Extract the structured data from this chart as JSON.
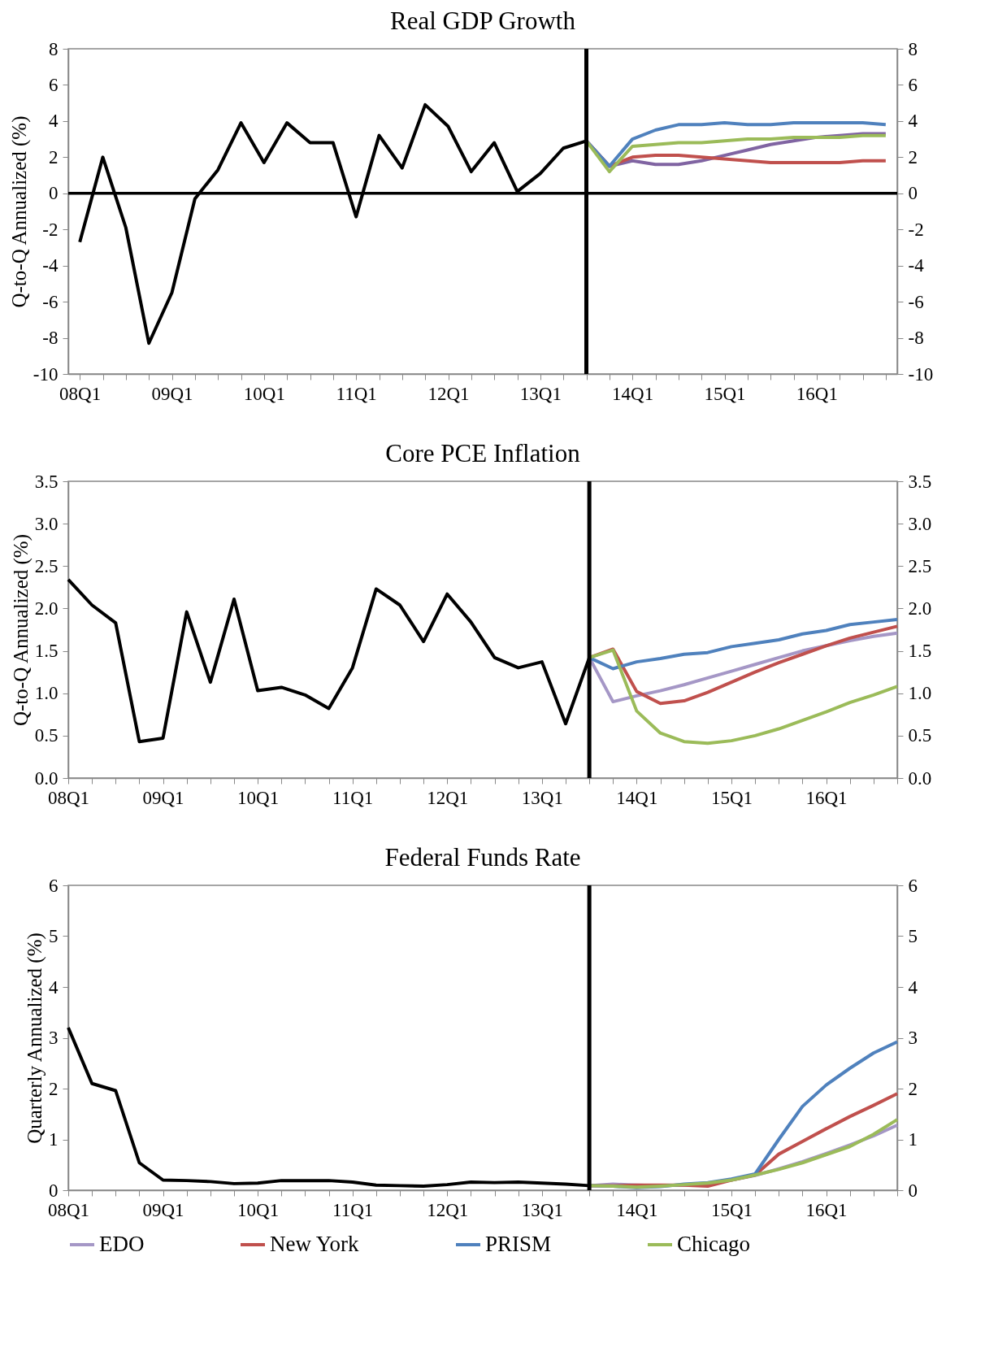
{
  "chart_data": [
    {
      "type": "line",
      "title": "Real GDP Growth",
      "ylabel": "Q-to-Q Annualized (%)",
      "categories": [
        "08Q1",
        null,
        null,
        null,
        "09Q1",
        null,
        null,
        null,
        "10Q1",
        null,
        null,
        null,
        "11Q1",
        null,
        null,
        null,
        "12Q1",
        null,
        null,
        null,
        "13Q1",
        null,
        null,
        null,
        "14Q1",
        null,
        null,
        null,
        "15Q1",
        null,
        null,
        null,
        "16Q1",
        null,
        null,
        null
      ],
      "series": [
        {
          "color": "#000000",
          "values": [
            -2.7,
            2.0,
            -1.9,
            -8.3,
            -5.5,
            -0.3,
            1.3,
            3.9,
            1.7,
            3.9,
            2.8,
            2.8,
            -1.3,
            3.2,
            1.4,
            4.9,
            3.7,
            1.2,
            2.8,
            0.1,
            1.1,
            2.5,
            2.9,
            null,
            null,
            null,
            null,
            null,
            null,
            null,
            null,
            null,
            null,
            null,
            null,
            null
          ]
        },
        {
          "color": "#8064a2",
          "values": [
            null,
            null,
            null,
            null,
            null,
            null,
            null,
            null,
            null,
            null,
            null,
            null,
            null,
            null,
            null,
            null,
            null,
            null,
            null,
            null,
            null,
            null,
            2.9,
            1.5,
            1.8,
            1.6,
            1.6,
            1.8,
            2.1,
            2.4,
            2.7,
            2.9,
            3.1,
            3.2,
            3.3,
            3.3
          ]
        },
        {
          "color": "#c0504d",
          "values": [
            null,
            null,
            null,
            null,
            null,
            null,
            null,
            null,
            null,
            null,
            null,
            null,
            null,
            null,
            null,
            null,
            null,
            null,
            null,
            null,
            null,
            null,
            2.9,
            1.5,
            2.0,
            2.1,
            2.1,
            2.0,
            1.9,
            1.8,
            1.7,
            1.7,
            1.7,
            1.7,
            1.8,
            1.8
          ]
        },
        {
          "color": "#4f81bd",
          "values": [
            null,
            null,
            null,
            null,
            null,
            null,
            null,
            null,
            null,
            null,
            null,
            null,
            null,
            null,
            null,
            null,
            null,
            null,
            null,
            null,
            null,
            null,
            2.9,
            1.5,
            3.0,
            3.5,
            3.8,
            3.8,
            3.9,
            3.8,
            3.8,
            3.9,
            3.9,
            3.9,
            3.9,
            3.8
          ]
        },
        {
          "color": "#9bbb59",
          "values": [
            null,
            null,
            null,
            null,
            null,
            null,
            null,
            null,
            null,
            null,
            null,
            null,
            null,
            null,
            null,
            null,
            null,
            null,
            null,
            null,
            null,
            null,
            2.9,
            1.2,
            2.6,
            2.7,
            2.8,
            2.8,
            2.9,
            3.0,
            3.0,
            3.1,
            3.1,
            3.1,
            3.2,
            3.2
          ]
        }
      ],
      "ylim": [
        -10,
        8
      ],
      "yticks": [
        -10,
        -8,
        -6,
        -4,
        -2,
        0,
        2,
        4,
        6,
        8
      ],
      "y2lim": [
        -10,
        8
      ],
      "y2ticks": [
        -10,
        -8,
        -6,
        -4,
        -2,
        0,
        2,
        4,
        6,
        8
      ],
      "ref_lines": [
        {
          "axis": "y",
          "value": 0,
          "color": "#000000"
        }
      ]
    },
    {
      "type": "line",
      "title": "Core PCE Inflation",
      "ylabel": "Q-to-Q Annualized (%)",
      "categories": [
        "08Q1",
        null,
        null,
        null,
        "09Q1",
        null,
        null,
        null,
        "10Q1",
        null,
        null,
        null,
        "11Q1",
        null,
        null,
        null,
        "12Q1",
        null,
        null,
        null,
        "13Q1",
        null,
        null,
        null,
        "14Q1",
        null,
        null,
        null,
        "15Q1",
        null,
        null,
        null,
        "16Q1",
        null,
        null,
        null
      ],
      "series": [
        {
          "color": "#000000",
          "values": [
            2.34,
            2.04,
            1.83,
            0.43,
            0.47,
            1.96,
            1.13,
            2.11,
            1.03,
            1.07,
            0.98,
            0.82,
            1.3,
            2.23,
            2.04,
            1.61,
            2.17,
            1.84,
            1.42,
            1.3,
            1.37,
            0.64,
            1.42,
            null,
            null,
            null,
            null,
            null,
            null,
            null,
            null,
            null,
            null,
            null,
            null,
            null
          ]
        },
        {
          "color": "#a597c6",
          "values": [
            null,
            null,
            null,
            null,
            null,
            null,
            null,
            null,
            null,
            null,
            null,
            null,
            null,
            null,
            null,
            null,
            null,
            null,
            null,
            null,
            null,
            null,
            1.42,
            0.9,
            0.97,
            1.03,
            1.1,
            1.18,
            1.26,
            1.34,
            1.42,
            1.5,
            1.56,
            1.62,
            1.67,
            1.71
          ]
        },
        {
          "color": "#c0504d",
          "values": [
            null,
            null,
            null,
            null,
            null,
            null,
            null,
            null,
            null,
            null,
            null,
            null,
            null,
            null,
            null,
            null,
            null,
            null,
            null,
            null,
            null,
            null,
            1.42,
            1.52,
            1.02,
            0.88,
            0.91,
            1.01,
            1.13,
            1.25,
            1.36,
            1.46,
            1.56,
            1.65,
            1.72,
            1.79
          ]
        },
        {
          "color": "#4f81bd",
          "values": [
            null,
            null,
            null,
            null,
            null,
            null,
            null,
            null,
            null,
            null,
            null,
            null,
            null,
            null,
            null,
            null,
            null,
            null,
            null,
            null,
            null,
            null,
            1.42,
            1.29,
            1.37,
            1.41,
            1.46,
            1.48,
            1.55,
            1.59,
            1.63,
            1.7,
            1.74,
            1.81,
            1.84,
            1.87
          ]
        },
        {
          "color": "#9bbb59",
          "values": [
            null,
            null,
            null,
            null,
            null,
            null,
            null,
            null,
            null,
            null,
            null,
            null,
            null,
            null,
            null,
            null,
            null,
            null,
            null,
            null,
            null,
            null,
            1.42,
            1.51,
            0.79,
            0.53,
            0.43,
            0.41,
            0.44,
            0.5,
            0.58,
            0.68,
            0.78,
            0.89,
            0.98,
            1.08
          ]
        }
      ],
      "ylim": [
        0,
        3.5
      ],
      "yticks": [
        {
          "value": 0,
          "label": "0.0"
        },
        0.5,
        {
          "value": 1,
          "label": "1.0"
        },
        1.5,
        {
          "value": 2,
          "label": "2.0"
        },
        2.5,
        {
          "value": 3,
          "label": "3.0"
        },
        3.5
      ],
      "y2lim": [
        0,
        3.5
      ],
      "y2ticks": [
        {
          "value": 0,
          "label": "0.0"
        },
        0.5,
        {
          "value": 1,
          "label": "1.0"
        },
        1.5,
        {
          "value": 2,
          "label": "2.0"
        },
        2.5,
        {
          "value": 3,
          "label": "3.0"
        },
        3.5
      ]
    },
    {
      "type": "line",
      "title": "Federal Funds Rate",
      "ylabel": "Quarterly Annualized (%)",
      "legend": "bottom",
      "categories": [
        "08Q1",
        null,
        null,
        null,
        "09Q1",
        null,
        null,
        null,
        "10Q1",
        null,
        null,
        null,
        "11Q1",
        null,
        null,
        null,
        "12Q1",
        null,
        null,
        null,
        "13Q1",
        null,
        null,
        null,
        "14Q1",
        null,
        null,
        null,
        "15Q1",
        null,
        null,
        null,
        "16Q1",
        null,
        null,
        null
      ],
      "series": [
        {
          "color": "#000000",
          "values": [
            3.2,
            2.1,
            1.96,
            0.54,
            0.2,
            0.19,
            0.17,
            0.13,
            0.14,
            0.19,
            0.19,
            0.19,
            0.16,
            0.1,
            0.09,
            0.08,
            0.11,
            0.16,
            0.15,
            0.16,
            0.14,
            0.12,
            0.09,
            null,
            null,
            null,
            null,
            null,
            null,
            null,
            null,
            null,
            null,
            null,
            null,
            null
          ]
        },
        {
          "name": "EDO",
          "color": "#a597c6",
          "values": [
            null,
            null,
            null,
            null,
            null,
            null,
            null,
            null,
            null,
            null,
            null,
            null,
            null,
            null,
            null,
            null,
            null,
            null,
            null,
            null,
            null,
            null,
            0.09,
            0.12,
            0.1,
            0.09,
            0.1,
            0.13,
            0.2,
            0.29,
            0.42,
            0.56,
            0.72,
            0.89,
            1.07,
            1.28
          ]
        },
        {
          "name": "New York",
          "color": "#c0504d",
          "values": [
            null,
            null,
            null,
            null,
            null,
            null,
            null,
            null,
            null,
            null,
            null,
            null,
            null,
            null,
            null,
            null,
            null,
            null,
            null,
            null,
            null,
            null,
            0.09,
            0.09,
            0.1,
            0.1,
            0.1,
            0.08,
            0.2,
            0.3,
            0.71,
            0.96,
            1.21,
            1.45,
            1.67,
            1.9
          ]
        },
        {
          "name": "PRISM",
          "color": "#4f81bd",
          "values": [
            null,
            null,
            null,
            null,
            null,
            null,
            null,
            null,
            null,
            null,
            null,
            null,
            null,
            null,
            null,
            null,
            null,
            null,
            null,
            null,
            null,
            null,
            0.09,
            0.08,
            0.05,
            0.07,
            0.12,
            0.15,
            0.22,
            0.32,
            1.0,
            1.65,
            2.07,
            2.4,
            2.7,
            2.92
          ]
        },
        {
          "name": "Chicago",
          "color": "#9bbb59",
          "values": [
            null,
            null,
            null,
            null,
            null,
            null,
            null,
            null,
            null,
            null,
            null,
            null,
            null,
            null,
            null,
            null,
            null,
            null,
            null,
            null,
            null,
            null,
            0.09,
            0.08,
            0.06,
            0.08,
            0.11,
            0.14,
            0.2,
            0.3,
            0.41,
            0.54,
            0.7,
            0.86,
            1.1,
            1.39
          ]
        }
      ],
      "ylim": [
        0,
        6
      ],
      "yticks": [
        0,
        1,
        2,
        3,
        4,
        5,
        6
      ],
      "y2lim": [
        0,
        6
      ],
      "y2ticks": [
        0,
        1,
        2,
        3,
        4,
        5,
        6
      ]
    }
  ]
}
